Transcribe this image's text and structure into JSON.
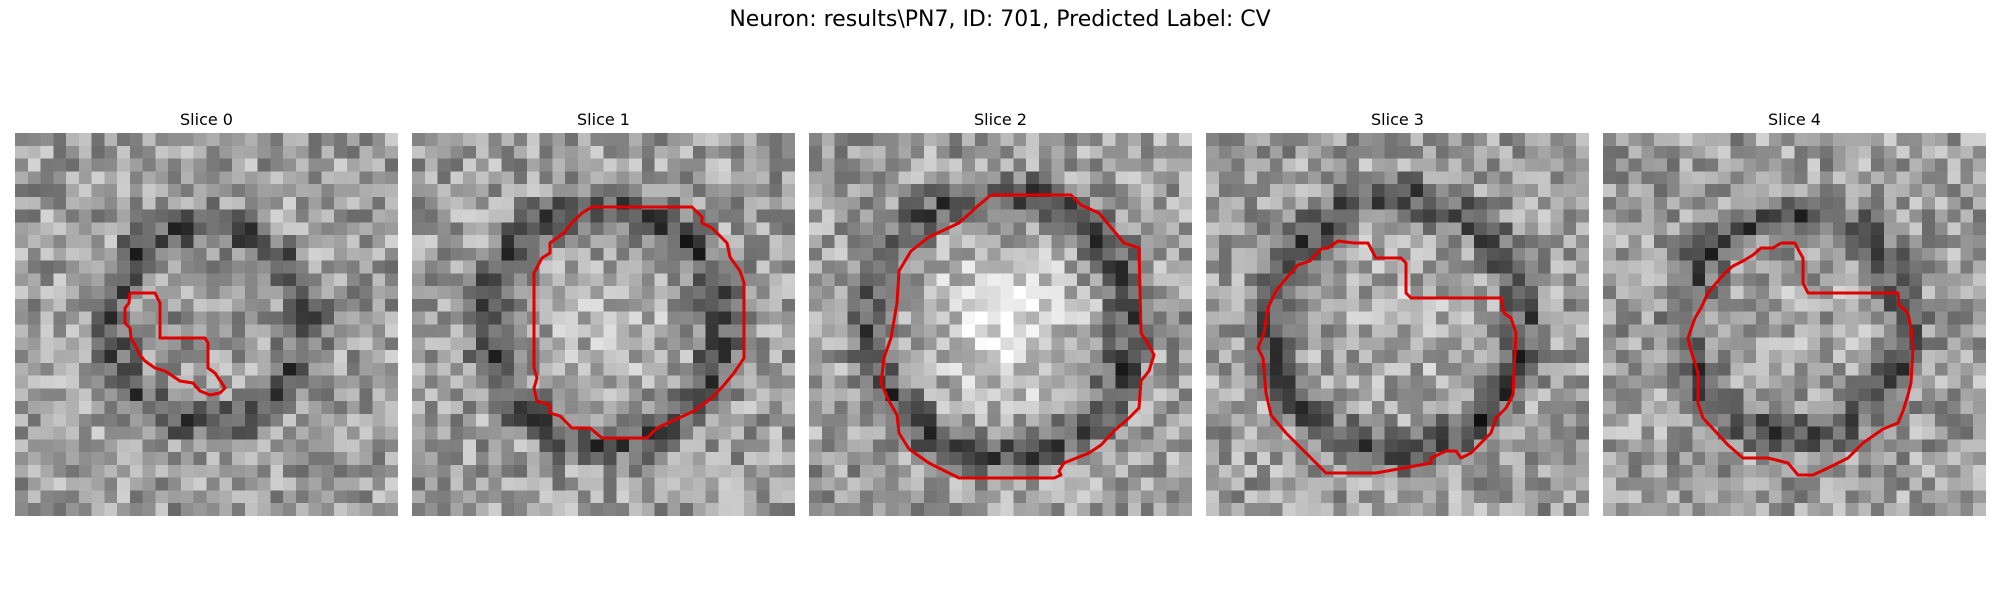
{
  "figure": {
    "title": "Neuron: results\\PN7, ID: 701, Predicted Label: CV"
  },
  "panels": [
    {
      "title": "Slice 0",
      "seed": 11,
      "ring": 0.3,
      "bright": 0.45,
      "contour": "small"
    },
    {
      "title": "Slice 1",
      "seed": 23,
      "ring": 0.36,
      "bright": 0.62,
      "contour": "octagon-1"
    },
    {
      "title": "Slice 2",
      "seed": 37,
      "ring": 0.4,
      "bright": 0.85,
      "contour": "octagon-2"
    },
    {
      "title": "Slice 3",
      "seed": 53,
      "ring": 0.39,
      "bright": 0.6,
      "contour": "notched-3"
    },
    {
      "title": "Slice 4",
      "seed": 71,
      "ring": 0.34,
      "bright": 0.55,
      "contour": "notched-4"
    }
  ],
  "style": {
    "contour_color": "#e00000",
    "colormap": "gray"
  }
}
